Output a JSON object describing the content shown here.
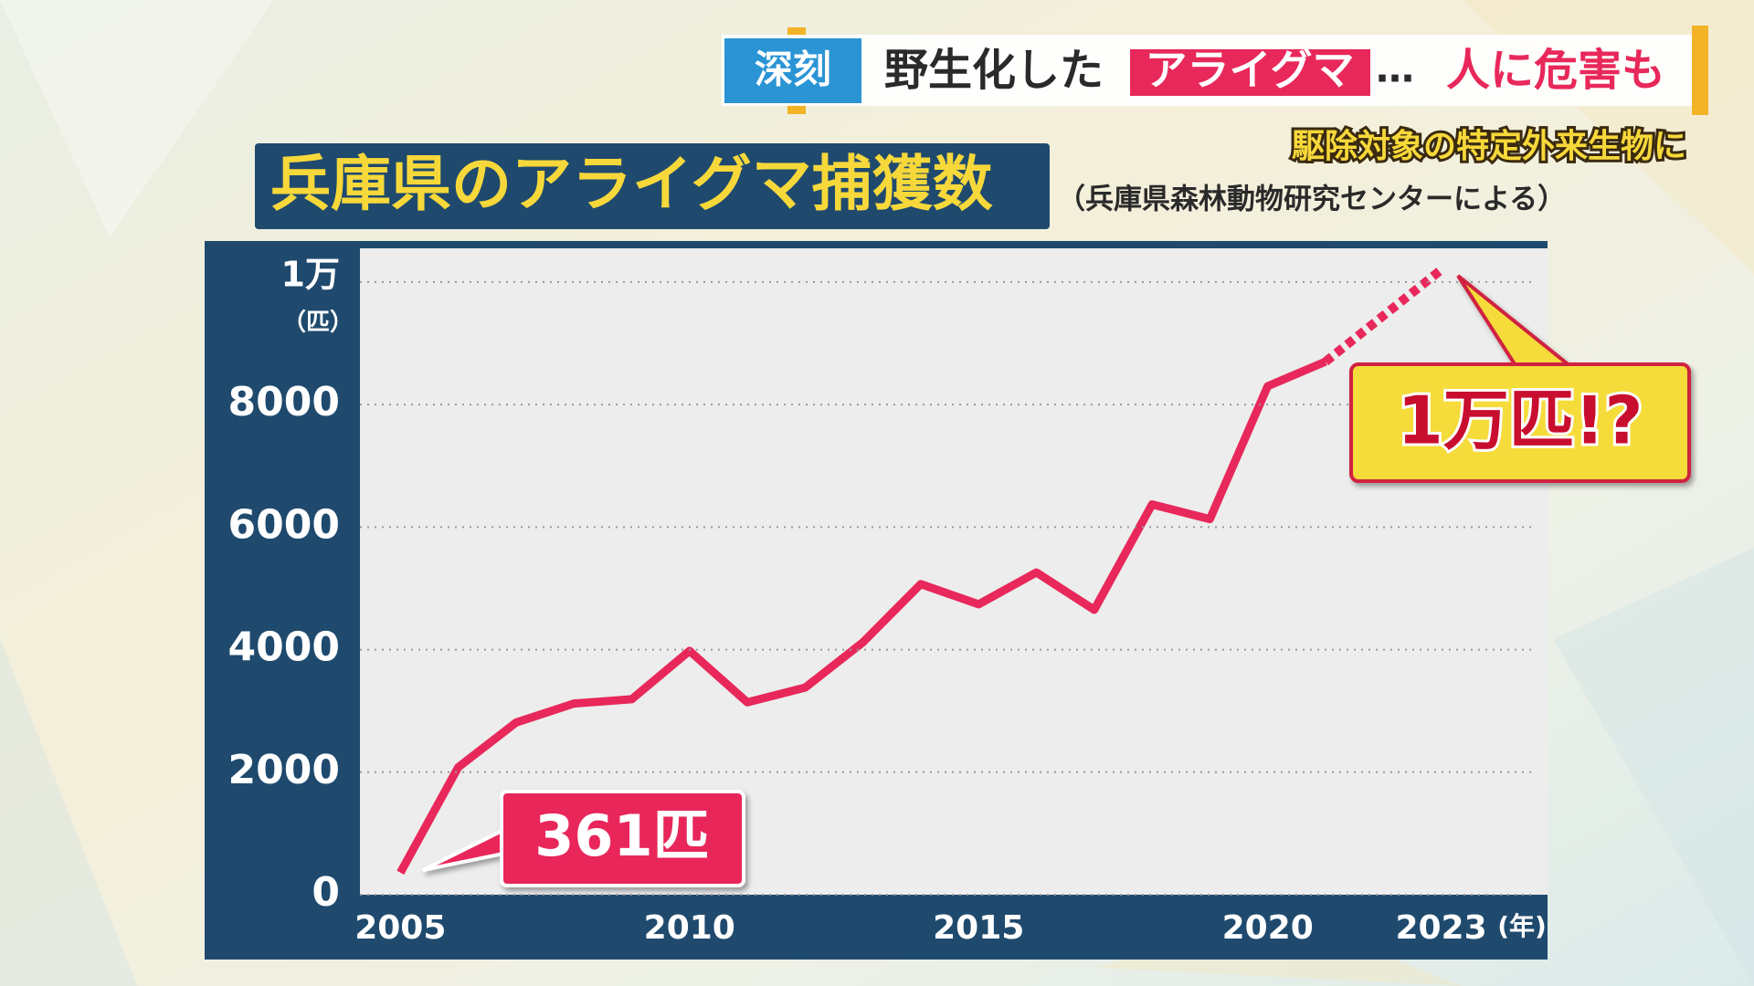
{
  "header": {
    "tag": "深刻",
    "text": "野生化した",
    "highlight": "アライグマ",
    "ellipsis": "…",
    "tail": "人に危害も",
    "subtitle": "駆除対象の特定外来生物に"
  },
  "chart_data": {
    "type": "line",
    "title": "兵庫県のアライグマ捕獲数",
    "subtitle": "（兵庫県森林動物研究センターによる）",
    "x": [
      2005,
      2006,
      2007,
      2008,
      2009,
      2010,
      2011,
      2012,
      2013,
      2014,
      2015,
      2016,
      2017,
      2018,
      2019,
      2020,
      2021,
      2023
    ],
    "series": [
      {
        "color": "#e8285a",
        "values": [
          361,
          2080,
          2810,
          3120,
          3190,
          3980,
          3140,
          3380,
          4120,
          5070,
          4740,
          5260,
          4650,
          6370,
          6130,
          8300,
          8700,
          null
        ]
      },
      {
        "color": "#e8285a",
        "dashed": true,
        "values": [
          null,
          null,
          null,
          null,
          null,
          null,
          null,
          null,
          null,
          null,
          null,
          null,
          null,
          null,
          null,
          null,
          8700,
          10200
        ]
      }
    ],
    "xlim": [
      2004.3,
      2024.84
    ],
    "xticks": [
      2005,
      2010,
      2015,
      2020,
      2023
    ],
    "x_unit": "(年)",
    "ylim": [
      0,
      10550
    ],
    "yticks": [
      0,
      2000,
      4000,
      6000,
      8000,
      {
        "value": 10000,
        "label": "1万"
      }
    ],
    "y_unit": "（匹）",
    "grid": true,
    "annotations": [
      {
        "text": "361匹"
      },
      {
        "text": "1万匹!?"
      }
    ]
  }
}
